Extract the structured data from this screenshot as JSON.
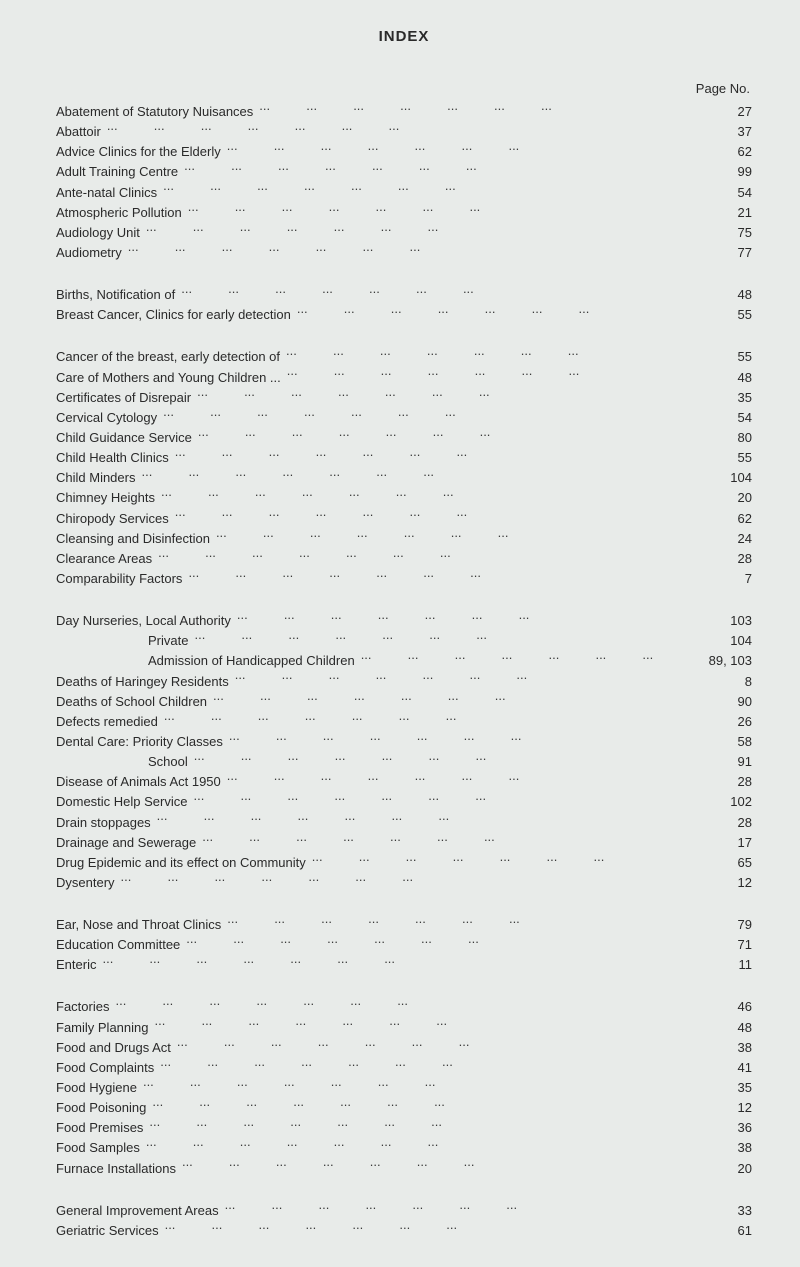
{
  "title": "INDEX",
  "page_header": "Page No.",
  "colors": {
    "background": "#e8ebe9",
    "text": "#2a2a2a",
    "dots": "#3a3a3a"
  },
  "typography": {
    "title_fontsize": 15,
    "body_fontsize": 13,
    "font_family": "Arial, Helvetica, sans-serif"
  },
  "sections": [
    {
      "entries": [
        {
          "label": "Abatement of Statutory Nuisances",
          "page": "27",
          "indent": 0
        },
        {
          "label": "Abattoir",
          "page": "37",
          "indent": 0
        },
        {
          "label": "Advice Clinics for the Elderly",
          "page": "62",
          "indent": 0
        },
        {
          "label": "Adult Training Centre",
          "page": "99",
          "indent": 0
        },
        {
          "label": "Ante-natal Clinics",
          "page": "54",
          "indent": 0
        },
        {
          "label": "Atmospheric Pollution",
          "page": "21",
          "indent": 0
        },
        {
          "label": "Audiology Unit",
          "page": "75",
          "indent": 0
        },
        {
          "label": "Audiometry",
          "page": "77",
          "indent": 0
        }
      ]
    },
    {
      "entries": [
        {
          "label": "Births, Notification of",
          "page": "48",
          "indent": 0
        },
        {
          "label": "Breast Cancer, Clinics for early detection",
          "page": "55",
          "indent": 0
        }
      ]
    },
    {
      "entries": [
        {
          "label": "Cancer of the breast, early detection of",
          "page": "55",
          "indent": 0
        },
        {
          "label": "Care of Mothers and Young Children ...",
          "page": "48",
          "indent": 0
        },
        {
          "label": "Certificates of Disrepair",
          "page": "35",
          "indent": 0
        },
        {
          "label": "Cervical Cytology",
          "page": "54",
          "indent": 0
        },
        {
          "label": "Child Guidance Service",
          "page": "80",
          "indent": 0
        },
        {
          "label": "Child Health Clinics",
          "page": "55",
          "indent": 0
        },
        {
          "label": "Child Minders",
          "page": "104",
          "indent": 0
        },
        {
          "label": "Chimney Heights",
          "page": "20",
          "indent": 0
        },
        {
          "label": "Chiropody Services",
          "page": "62",
          "indent": 0
        },
        {
          "label": "Cleansing and Disinfection",
          "page": "24",
          "indent": 0
        },
        {
          "label": "Clearance Areas",
          "page": "28",
          "indent": 0
        },
        {
          "label": "Comparability Factors",
          "page": "7",
          "indent": 0
        }
      ]
    },
    {
      "entries": [
        {
          "label": "Day Nurseries, Local Authority",
          "page": "103",
          "indent": 0
        },
        {
          "label": "Private",
          "page": "104",
          "indent": 1
        },
        {
          "label": "Admission of Handicapped Children",
          "page": "89, 103",
          "indent": 2
        },
        {
          "label": "Deaths of Haringey Residents",
          "page": "8",
          "indent": 0
        },
        {
          "label": "Deaths of School Children",
          "page": "90",
          "indent": 0
        },
        {
          "label": "Defects remedied",
          "page": "26",
          "indent": 0
        },
        {
          "label": "Dental Care: Priority Classes",
          "page": "58",
          "indent": 0
        },
        {
          "label": "School",
          "page": "91",
          "indent": 1
        },
        {
          "label": "Disease of Animals Act 1950",
          "page": "28",
          "indent": 0
        },
        {
          "label": "Domestic Help Service",
          "page": "102",
          "indent": 0
        },
        {
          "label": "Drain stoppages",
          "page": "28",
          "indent": 0
        },
        {
          "label": "Drainage and Sewerage",
          "page": "17",
          "indent": 0
        },
        {
          "label": "Drug Epidemic and its effect on Community",
          "page": "65",
          "indent": 0
        },
        {
          "label": "Dysentery",
          "page": "12",
          "indent": 0
        }
      ]
    },
    {
      "entries": [
        {
          "label": "Ear, Nose and Throat Clinics",
          "page": "79",
          "indent": 0
        },
        {
          "label": "Education Committee",
          "page": "71",
          "indent": 0
        },
        {
          "label": "Enteric",
          "page": "11",
          "indent": 0
        }
      ]
    },
    {
      "entries": [
        {
          "label": "Factories",
          "page": "46",
          "indent": 0
        },
        {
          "label": "Family Planning",
          "page": "48",
          "indent": 0
        },
        {
          "label": "Food and Drugs Act",
          "page": "38",
          "indent": 0
        },
        {
          "label": "Food Complaints",
          "page": "41",
          "indent": 0
        },
        {
          "label": "Food Hygiene",
          "page": "35",
          "indent": 0
        },
        {
          "label": "Food Poisoning",
          "page": "12",
          "indent": 0
        },
        {
          "label": "Food Premises",
          "page": "36",
          "indent": 0
        },
        {
          "label": "Food Samples",
          "page": "38",
          "indent": 0
        },
        {
          "label": "Furnace Installations",
          "page": "20",
          "indent": 0
        }
      ]
    },
    {
      "entries": [
        {
          "label": "General Improvement Areas",
          "page": "33",
          "indent": 0
        },
        {
          "label": "Geriatric Services",
          "page": "61",
          "indent": 0
        }
      ]
    }
  ]
}
